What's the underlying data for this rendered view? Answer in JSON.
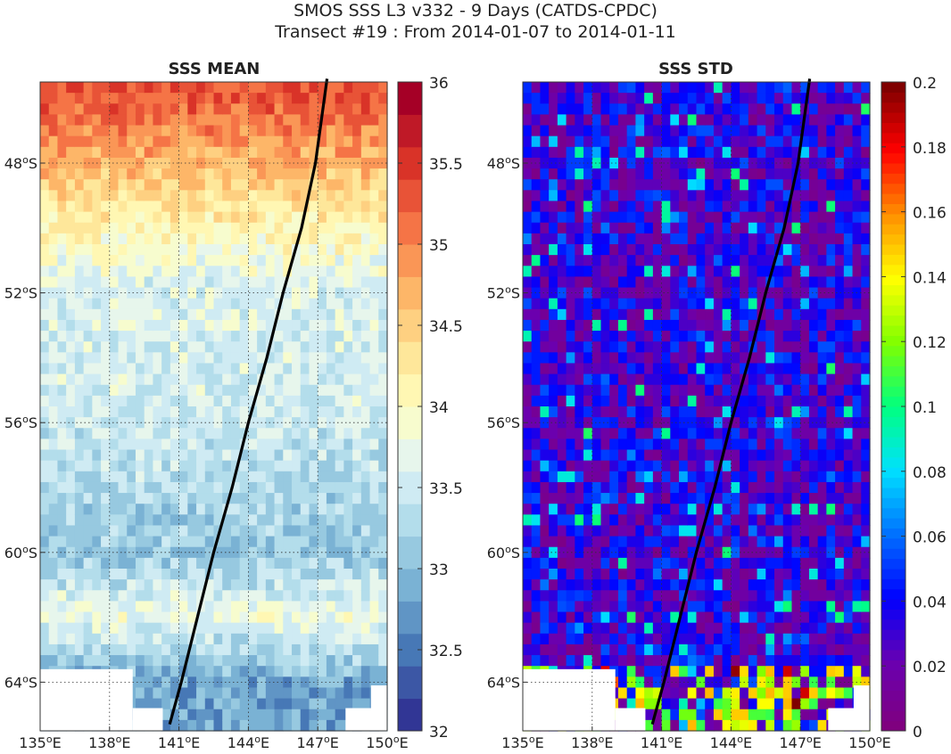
{
  "figure": {
    "title_line1": "SMOS SSS L3 v332 - 9 Days (CATDS-CPDC)",
    "title_line2": "Transect #19 : From 2014-01-07 to 2014-01-11"
  },
  "chart_data": [
    {
      "type": "heatmap",
      "title": "SSS MEAN",
      "xlim": [
        135,
        150
      ],
      "ylim": [
        -65.5,
        -45.5
      ],
      "x_ticks": [
        "135°E",
        "138°E",
        "141°E",
        "144°E",
        "147°E",
        "150°E"
      ],
      "y_ticks": [
        "48°S",
        "52°S",
        "56°S",
        "60°S",
        "64°S"
      ],
      "grid": true,
      "colorbar": {
        "min": 32,
        "max": 36,
        "ticks": [
          "32",
          "32.5",
          "33",
          "33.5",
          "34",
          "34.5",
          "35",
          "35.5",
          "36"
        ],
        "colormap": "RdYlBu_r",
        "levels": 20
      },
      "field_summary": [
        {
          "lat": -46,
          "value": 35.3
        },
        {
          "lat": -48,
          "value": 34.7
        },
        {
          "lat": -50,
          "value": 34.1
        },
        {
          "lat": -52,
          "value": 33.6
        },
        {
          "lat": -56,
          "value": 33.5
        },
        {
          "lat": -60,
          "value": 33.1
        },
        {
          "lat": -62,
          "value": 33.8
        },
        {
          "lat": -64,
          "value": 32.8
        }
      ],
      "transect": {
        "lon": [
          140.6,
          141.1,
          141.8,
          142.5,
          143.3,
          144.0,
          144.8,
          145.5,
          146.3,
          146.9,
          147.4
        ],
        "lat": [
          -65.3,
          -64.0,
          -62.0,
          -60.0,
          -58.0,
          -56.0,
          -54.0,
          -52.0,
          -50.0,
          -48.0,
          -45.4
        ]
      }
    },
    {
      "type": "heatmap",
      "title": "SSS STD",
      "xlim": [
        135,
        150
      ],
      "ylim": [
        -65.5,
        -45.5
      ],
      "x_ticks": [
        "135°E",
        "138°E",
        "141°E",
        "144°E",
        "147°E",
        "150°E"
      ],
      "y_ticks": [
        "48°S",
        "52°S",
        "56°S",
        "60°S",
        "64°S"
      ],
      "grid": true,
      "colorbar": {
        "min": 0,
        "max": 0.2,
        "ticks": [
          "0",
          "0.02",
          "0.04",
          "0.06",
          "0.08",
          "0.1",
          "0.12",
          "0.14",
          "0.16",
          "0.18",
          "0.2"
        ],
        "colormap": "jet-purple",
        "levels": 64
      },
      "field_summary": [
        {
          "lat": -48,
          "value": 0.03
        },
        {
          "lat": -56,
          "value": 0.03
        },
        {
          "lat": -64,
          "value": 0.1
        }
      ],
      "transect": {
        "lon": [
          140.6,
          141.1,
          141.8,
          142.5,
          143.3,
          144.0,
          144.8,
          145.5,
          146.3,
          146.9,
          147.4
        ],
        "lat": [
          -65.3,
          -64.0,
          -62.0,
          -60.0,
          -58.0,
          -56.0,
          -54.0,
          -52.0,
          -50.0,
          -48.0,
          -45.4
        ]
      }
    }
  ]
}
